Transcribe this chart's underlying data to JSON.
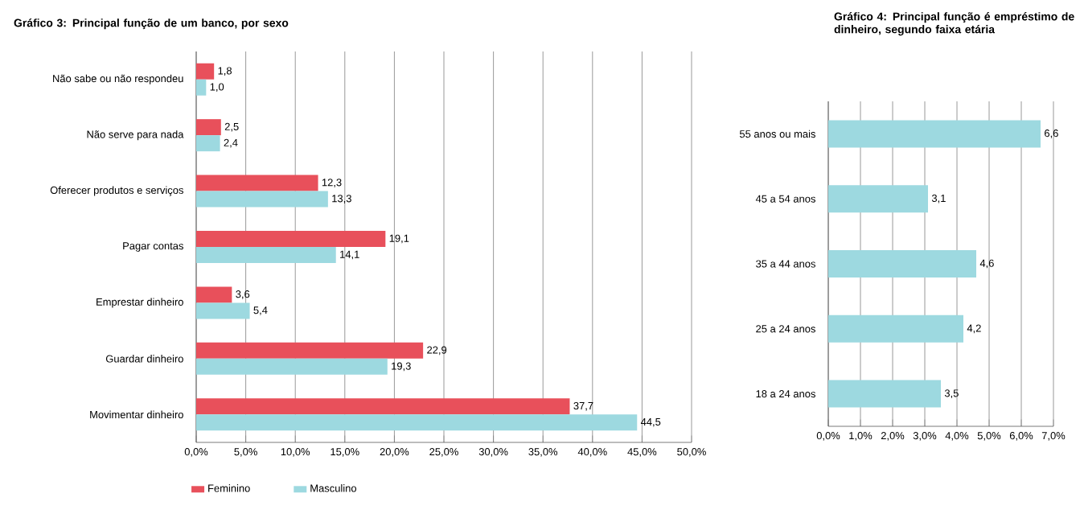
{
  "chart_data": [
    {
      "type": "bar",
      "orientation": "horizontal",
      "title": "Gráfico 3: Principal função de um banco, por sexo",
      "categories": [
        "Não sabe ou não respondeu",
        "Não serve para nada",
        "Oferecer produtos e serviços",
        "Pagar contas",
        "Emprestar dinheiro",
        "Guardar dinheiro",
        "Movimentar dinheiro"
      ],
      "series": [
        {
          "name": "Feminino",
          "color": "#e8505b",
          "values": [
            1.8,
            2.5,
            12.3,
            19.1,
            3.6,
            22.9,
            37.7
          ],
          "value_labels": [
            "1,8",
            "2,5",
            "12,3",
            "19,1",
            "3,6",
            "22,9",
            "37,7"
          ]
        },
        {
          "name": "Masculino",
          "color": "#9dd9e0",
          "values": [
            1.0,
            2.4,
            13.3,
            14.1,
            5.4,
            19.3,
            44.5
          ],
          "value_labels": [
            "1,0",
            "2,4",
            "13,3",
            "14,1",
            "5,4",
            "19,3",
            "44,5"
          ]
        }
      ],
      "xlim": [
        0,
        50
      ],
      "xticks": [
        {
          "value": 0,
          "label": "0,0%"
        },
        {
          "value": 5,
          "label": "5,0%"
        },
        {
          "value": 10,
          "label": "10,0%"
        },
        {
          "value": 15,
          "label": "15,0%"
        },
        {
          "value": 20,
          "label": "20,0%"
        },
        {
          "value": 25,
          "label": "25,0%"
        },
        {
          "value": 30,
          "label": "30,0%"
        },
        {
          "value": 35,
          "label": "35,0%"
        },
        {
          "value": 40,
          "label": "40,0%"
        },
        {
          "value": 45,
          "label": "45,0%"
        },
        {
          "value": 50,
          "label": "50,0%"
        }
      ],
      "grid": "x",
      "legend": "bottom"
    },
    {
      "type": "bar",
      "orientation": "horizontal",
      "title": "Gráfico 4: Principal função é empréstimo de dinheiro, segundo faixa etária",
      "categories": [
        "55 anos ou mais",
        "45 a 54 anos",
        "35 a 44 anos",
        "25 a 24 anos",
        "18 a 24 anos"
      ],
      "values": [
        6.6,
        3.1,
        4.6,
        4.2,
        3.5
      ],
      "value_labels": [
        "6,6",
        "3,1",
        "4,6",
        "4,2",
        "3,5"
      ],
      "color": "#9dd9e0",
      "xlim": [
        0,
        7
      ],
      "xticks": [
        {
          "value": 0,
          "label": "0,0%"
        },
        {
          "value": 1,
          "label": "1,0%"
        },
        {
          "value": 2,
          "label": "2,0%"
        },
        {
          "value": 3,
          "label": "3,0%"
        },
        {
          "value": 4,
          "label": "4,0%"
        },
        {
          "value": 5,
          "label": "5,0%"
        },
        {
          "value": 6,
          "label": "6,0%"
        },
        {
          "value": 7,
          "label": "7,0%"
        }
      ],
      "grid": "x"
    }
  ]
}
